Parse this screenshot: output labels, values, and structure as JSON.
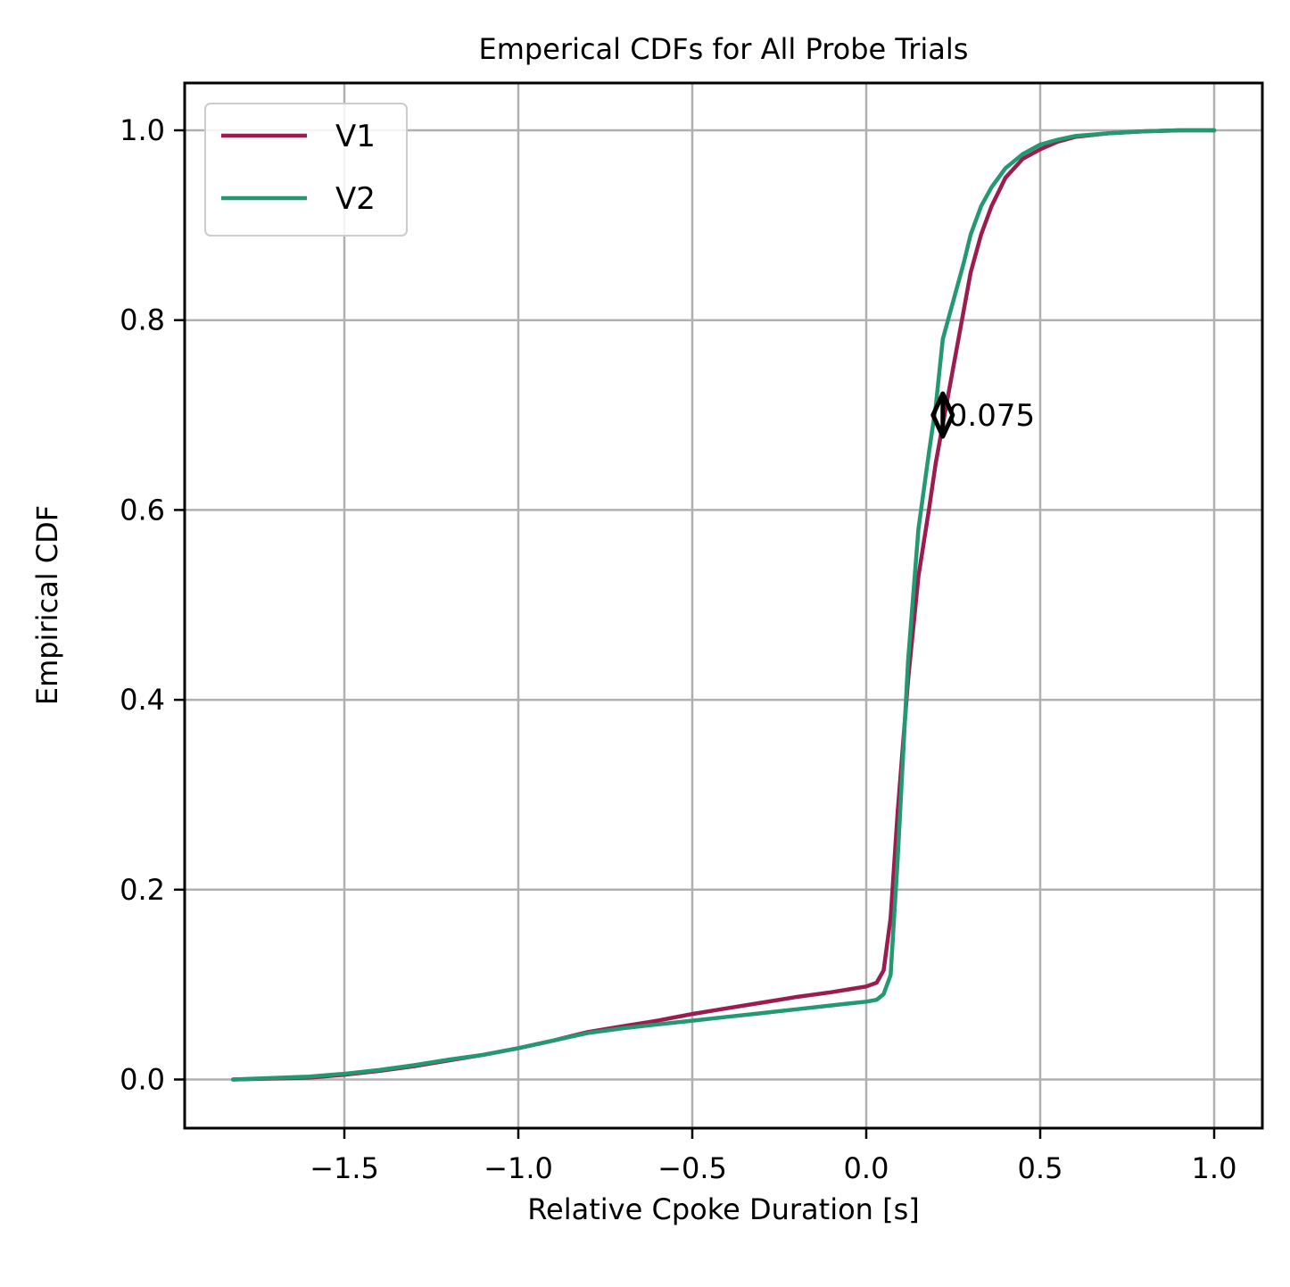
{
  "chart_data": {
    "type": "line",
    "title": "Emperical CDFs for All Probe Trials",
    "xlabel": "Relative Cpoke Duration [s]",
    "ylabel": "Empirical CDF",
    "xlim": [
      -1.96,
      1.13
    ],
    "ylim": [
      -0.05,
      1.05
    ],
    "xticks": [
      -1.5,
      -1.0,
      -0.5,
      0.0,
      0.5,
      1.0
    ],
    "xtick_labels": [
      "−1.5",
      "−1.0",
      "−0.5",
      "0.0",
      "0.5",
      "1.0"
    ],
    "yticks": [
      0.0,
      0.2,
      0.4,
      0.6,
      0.8,
      1.0
    ],
    "ytick_labels": [
      "0.0",
      "0.2",
      "0.4",
      "0.6",
      "0.8",
      "1.0"
    ],
    "grid": true,
    "legend_position": "upper-left",
    "series": [
      {
        "name": "V1",
        "color": "#9c1c4f",
        "x": [
          -1.82,
          -1.6,
          -1.5,
          -1.4,
          -1.3,
          -1.2,
          -1.1,
          -1.0,
          -0.9,
          -0.8,
          -0.7,
          -0.6,
          -0.5,
          -0.4,
          -0.3,
          -0.2,
          -0.1,
          -0.05,
          0.0,
          0.03,
          0.05,
          0.07,
          0.09,
          0.12,
          0.15,
          0.18,
          0.2,
          0.22,
          0.25,
          0.28,
          0.3,
          0.33,
          0.36,
          0.4,
          0.45,
          0.5,
          0.55,
          0.6,
          0.7,
          0.8,
          0.9,
          1.0
        ],
        "y": [
          0.0,
          0.002,
          0.005,
          0.009,
          0.014,
          0.02,
          0.026,
          0.033,
          0.041,
          0.05,
          0.056,
          0.062,
          0.069,
          0.075,
          0.081,
          0.087,
          0.092,
          0.095,
          0.098,
          0.102,
          0.115,
          0.17,
          0.28,
          0.42,
          0.53,
          0.6,
          0.65,
          0.69,
          0.75,
          0.81,
          0.85,
          0.89,
          0.92,
          0.95,
          0.97,
          0.98,
          0.988,
          0.993,
          0.997,
          0.999,
          1.0,
          1.0
        ]
      },
      {
        "name": "V2",
        "color": "#22996e",
        "x": [
          -1.82,
          -1.6,
          -1.5,
          -1.4,
          -1.3,
          -1.2,
          -1.1,
          -1.0,
          -0.9,
          -0.8,
          -0.7,
          -0.6,
          -0.5,
          -0.4,
          -0.3,
          -0.2,
          -0.1,
          -0.05,
          0.0,
          0.03,
          0.05,
          0.07,
          0.09,
          0.12,
          0.15,
          0.18,
          0.2,
          0.22,
          0.25,
          0.28,
          0.3,
          0.33,
          0.36,
          0.4,
          0.45,
          0.5,
          0.55,
          0.6,
          0.7,
          0.8,
          0.9,
          1.0
        ],
        "y": [
          0.0,
          0.003,
          0.006,
          0.01,
          0.015,
          0.021,
          0.026,
          0.033,
          0.041,
          0.049,
          0.054,
          0.058,
          0.062,
          0.066,
          0.07,
          0.074,
          0.078,
          0.08,
          0.082,
          0.084,
          0.09,
          0.11,
          0.23,
          0.44,
          0.58,
          0.66,
          0.71,
          0.78,
          0.82,
          0.86,
          0.89,
          0.92,
          0.94,
          0.96,
          0.975,
          0.985,
          0.99,
          0.994,
          0.997,
          0.999,
          1.0,
          1.0
        ]
      }
    ],
    "annotation": {
      "text": "0.075",
      "x": 0.22,
      "y": 0.7,
      "y_low": 0.68,
      "y_high": 0.72
    }
  }
}
